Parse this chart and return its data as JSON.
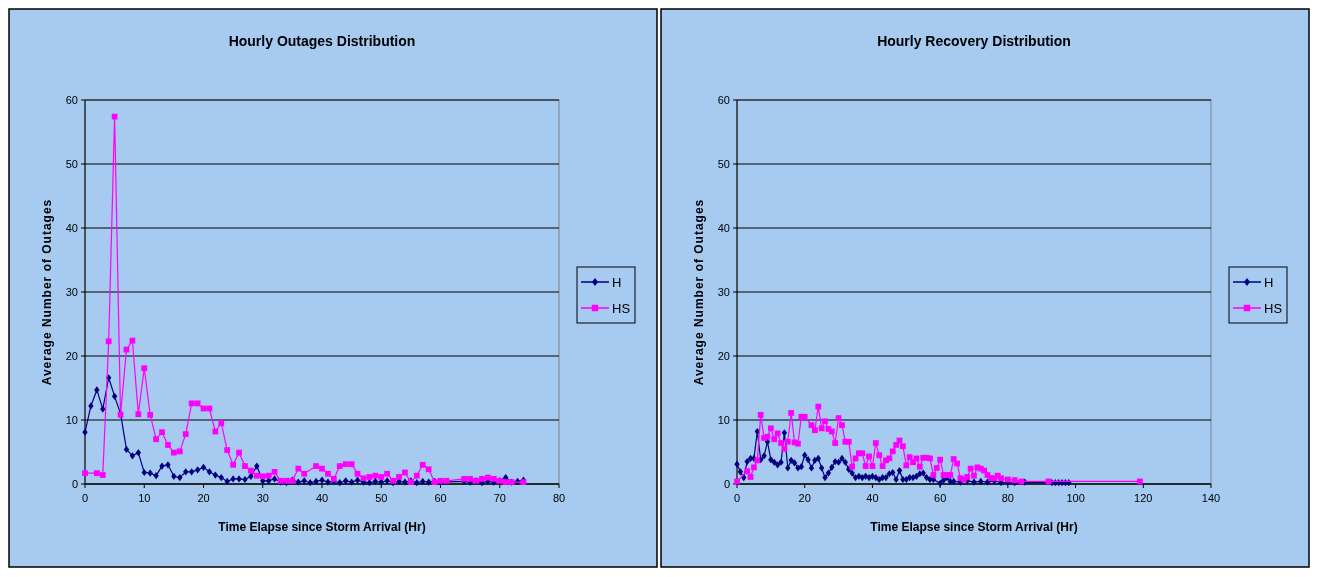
{
  "chart_data": [
    {
      "type": "line",
      "title": "Hourly Outages Distribution",
      "xlabel": "Time Elapse since Storm Arrival (Hr)",
      "ylabel": "Average Number of Outages",
      "xlim": [
        0,
        80
      ],
      "xticks": [
        0,
        10,
        20,
        30,
        40,
        50,
        60,
        70,
        80
      ],
      "ylim": [
        0,
        60
      ],
      "yticks": [
        0,
        10,
        20,
        30,
        40,
        50,
        60
      ],
      "grid": "y",
      "legend": "right",
      "series": [
        {
          "name": "H",
          "color": "#000080",
          "marker": "diamond",
          "x": [
            0,
            1,
            2,
            3,
            4,
            5,
            6,
            7,
            8,
            9,
            10,
            11,
            12,
            13,
            14,
            15,
            16,
            17,
            18,
            19,
            20,
            21,
            22,
            23,
            24,
            25,
            26,
            27,
            28,
            29,
            30,
            31,
            32,
            33,
            34,
            35,
            36,
            37,
            38,
            39,
            40,
            41,
            42,
            43,
            44,
            45,
            46,
            47,
            48,
            49,
            50,
            51,
            52,
            53,
            54,
            55,
            56,
            57,
            58,
            59,
            60,
            64,
            65,
            66,
            67,
            68,
            69,
            70,
            71,
            72,
            73,
            74
          ],
          "values": [
            8.1,
            12.2,
            14.7,
            11.7,
            16.6,
            13.7,
            11,
            5.4,
            4.4,
            4.9,
            1.8,
            1.7,
            1.3,
            2.8,
            3,
            1.2,
            1,
            1.9,
            1.9,
            2.2,
            2.6,
            1.9,
            1.4,
            1,
            0.4,
            0.8,
            0.8,
            0.7,
            1.2,
            2.8,
            0.5,
            0.5,
            0.8,
            0.3,
            0.2,
            0.6,
            0.3,
            0.5,
            0.2,
            0.4,
            0.6,
            0.3,
            0.4,
            0.2,
            0.5,
            0.3,
            0.6,
            0.3,
            0.2,
            0.4,
            0.3,
            0.5,
            0.2,
            0.4,
            0.3,
            0.5,
            0.2,
            0.4,
            0.3,
            0.4,
            0.3,
            0.4,
            0.3,
            0.5,
            0.2,
            0.4,
            0.3,
            0.5,
            1,
            0.3,
            0.4,
            0.6
          ]
        },
        {
          "name": "HS",
          "color": "#ff00ff",
          "marker": "square",
          "x": [
            0,
            2,
            3,
            4,
            5,
            6,
            7,
            8,
            9,
            10,
            11,
            12,
            13,
            14,
            15,
            16,
            17,
            18,
            19,
            20,
            21,
            22,
            23,
            24,
            25,
            26,
            27,
            28,
            29,
            30,
            31,
            32,
            33,
            34,
            35,
            36,
            37,
            39,
            40,
            41,
            42,
            43,
            44,
            45,
            46,
            47,
            48,
            49,
            50,
            51,
            52,
            53,
            54,
            55,
            56,
            57,
            58,
            59,
            60,
            61,
            64,
            65,
            66,
            67,
            68,
            69,
            70,
            71,
            72,
            74
          ],
          "values": [
            1.7,
            1.7,
            1.4,
            22.3,
            57.4,
            10.8,
            21,
            22.4,
            10.9,
            18.1,
            10.8,
            7,
            8.1,
            6.1,
            4.9,
            5.1,
            7.8,
            12.6,
            12.6,
            11.8,
            11.8,
            8.2,
            9.5,
            5.3,
            3,
            4.9,
            2.8,
            2.1,
            1.3,
            1.2,
            1.3,
            1.9,
            0.5,
            0.5,
            0.5,
            2.4,
            1.6,
            2.8,
            2.4,
            1.6,
            0.8,
            2.8,
            3.1,
            3.1,
            1.6,
            0.9,
            1.1,
            1.3,
            1.1,
            1.6,
            0.5,
            1.1,
            1.8,
            0.3,
            1.3,
            3,
            2.3,
            0.3,
            0.5,
            0.5,
            0.8,
            0.8,
            0.5,
            0.8,
            1,
            0.8,
            0.5,
            0.3,
            0.3,
            0.3
          ]
        }
      ]
    },
    {
      "type": "line",
      "title": "Hourly Recovery Distribution",
      "xlabel": "Time Elapse since Storm Arrival (Hr)",
      "ylabel": "Average Number of Outages",
      "xlim": [
        0,
        140
      ],
      "xticks": [
        0,
        20,
        40,
        60,
        80,
        100,
        120,
        140
      ],
      "ylim": [
        0,
        60
      ],
      "yticks": [
        0,
        10,
        20,
        30,
        40,
        50,
        60
      ],
      "grid": "y",
      "legend": "right",
      "series": [
        {
          "name": "H",
          "color": "#000080",
          "marker": "diamond",
          "x": [
            0,
            1,
            2,
            3,
            4,
            5,
            6,
            7,
            8,
            9,
            10,
            11,
            12,
            13,
            14,
            15,
            16,
            17,
            18,
            19,
            20,
            21,
            22,
            23,
            24,
            25,
            26,
            27,
            28,
            29,
            30,
            31,
            32,
            33,
            34,
            35,
            36,
            37,
            38,
            39,
            40,
            41,
            42,
            43,
            44,
            45,
            46,
            47,
            48,
            49,
            50,
            51,
            52,
            53,
            54,
            55,
            56,
            57,
            58,
            60,
            61,
            62,
            63,
            64,
            66,
            68,
            70,
            72,
            74,
            76,
            78,
            80,
            82,
            85,
            93,
            94,
            95,
            96,
            97,
            98
          ],
          "values": [
            3.1,
            1.9,
            1,
            3.5,
            4,
            4,
            8.2,
            3.8,
            4.4,
            6.6,
            3.8,
            3.4,
            3,
            3.4,
            8,
            2.5,
            3.7,
            3.3,
            2.5,
            2.7,
            4.5,
            3.8,
            2.5,
            3.7,
            4,
            2.5,
            1,
            1.7,
            2.6,
            3.5,
            3.4,
            4,
            3.4,
            2.3,
            1.7,
            1,
            1.2,
            1,
            1.2,
            1,
            1.2,
            1,
            0.7,
            1,
            1,
            1.6,
            1.8,
            0.7,
            2.1,
            0.7,
            0.7,
            1,
            1,
            1.2,
            1.6,
            1.7,
            1,
            0.7,
            0.7,
            0.1,
            0.6,
            1,
            0.4,
            0.4,
            0.3,
            0.5,
            0.3,
            0.4,
            0.3,
            0.5,
            0.2,
            0.3,
            0.2,
            0.3,
            0.2,
            0.2,
            0.2,
            0.2,
            0.2,
            0.2
          ]
        },
        {
          "name": "HS",
          "color": "#ff00ff",
          "marker": "square",
          "x": [
            0,
            3,
            4,
            5,
            6,
            7,
            8,
            9,
            10,
            11,
            12,
            13,
            14,
            15,
            16,
            17,
            18,
            19,
            20,
            22,
            23,
            24,
            25,
            26,
            27,
            28,
            29,
            30,
            31,
            32,
            33,
            34,
            35,
            36,
            37,
            38,
            39,
            40,
            41,
            42,
            43,
            44,
            45,
            46,
            47,
            48,
            49,
            50,
            51,
            52,
            53,
            54,
            55,
            56,
            57,
            58,
            59,
            60,
            61,
            62,
            63,
            64,
            65,
            66,
            67,
            68,
            69,
            70,
            71,
            72,
            73,
            74,
            75,
            76,
            77,
            78,
            80,
            82,
            84,
            92,
            119
          ],
          "values": [
            0.4,
            2,
            1.1,
            2.6,
            3.7,
            10.8,
            7.2,
            7.4,
            8.7,
            7,
            7.9,
            6.4,
            5.5,
            6.6,
            11.1,
            6.5,
            6.3,
            10.5,
            10.5,
            9.2,
            8.4,
            12.1,
            8.7,
            9.8,
            8.6,
            8.2,
            6.4,
            10.3,
            9.2,
            6.6,
            6.6,
            2.7,
            4,
            4.8,
            4.8,
            2.8,
            4.3,
            2.8,
            6.4,
            4.5,
            2.8,
            3.7,
            4,
            5.1,
            6.1,
            6.8,
            5.9,
            2.9,
            4.2,
            3.4,
            4,
            2.7,
            4.1,
            4.1,
            4,
            1.4,
            2.5,
            3.8,
            1.4,
            1.4,
            1.4,
            3.9,
            3.2,
            0.9,
            0.7,
            1.1,
            2.4,
            1.3,
            2.6,
            2.4,
            2.1,
            1.4,
            0.9,
            0.9,
            1.3,
            0.9,
            0.7,
            0.6,
            0.4,
            0.4,
            0.4
          ]
        }
      ]
    }
  ]
}
